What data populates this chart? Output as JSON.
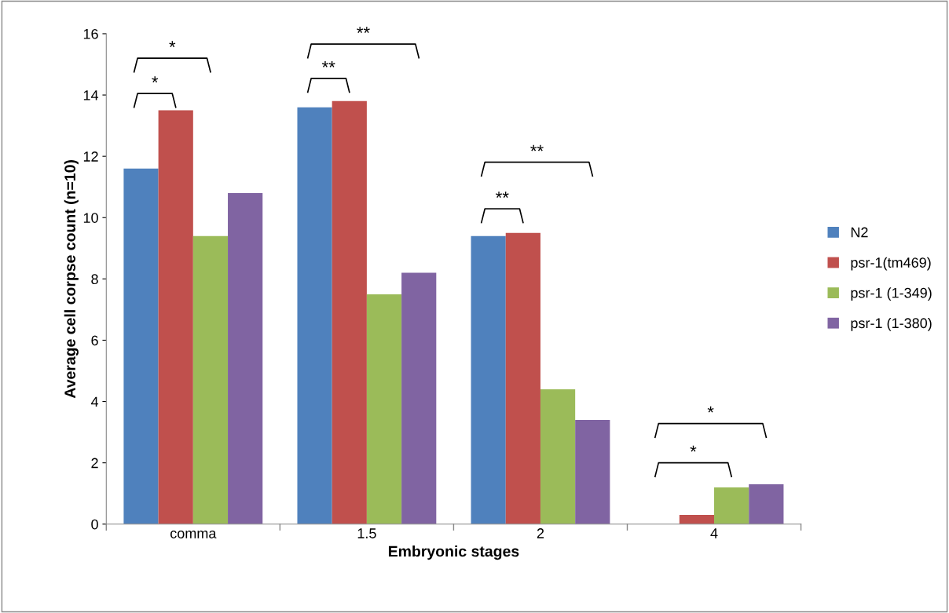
{
  "chart_data": {
    "type": "bar",
    "xlabel": "Embryonic stages",
    "ylabel": "Average cell corpse count (n=10)",
    "categories": [
      "comma",
      "1.5",
      "2",
      "4"
    ],
    "series": [
      {
        "name": "N2",
        "color": "#4f81bd",
        "values": [
          11.6,
          13.6,
          9.4,
          0
        ]
      },
      {
        "name": "psr-1(tm469)",
        "color": "#c0504d",
        "values": [
          13.5,
          13.8,
          9.5,
          0.3
        ]
      },
      {
        "name": "psr-1 (1-349)",
        "color": "#9bbb59",
        "values": [
          9.4,
          7.5,
          4.4,
          1.2
        ]
      },
      {
        "name": "psr-1 (1-380)",
        "color": "#8064a2",
        "values": [
          10.8,
          8.2,
          3.4,
          1.3
        ]
      }
    ],
    "ylim": [
      0,
      16
    ],
    "yticks": [
      0,
      2,
      4,
      6,
      8,
      10,
      12,
      14,
      16
    ],
    "grid": false,
    "legend": "right",
    "annotations": [
      "*",
      "*",
      "**",
      "**",
      "**",
      "**",
      "*",
      "*"
    ]
  }
}
